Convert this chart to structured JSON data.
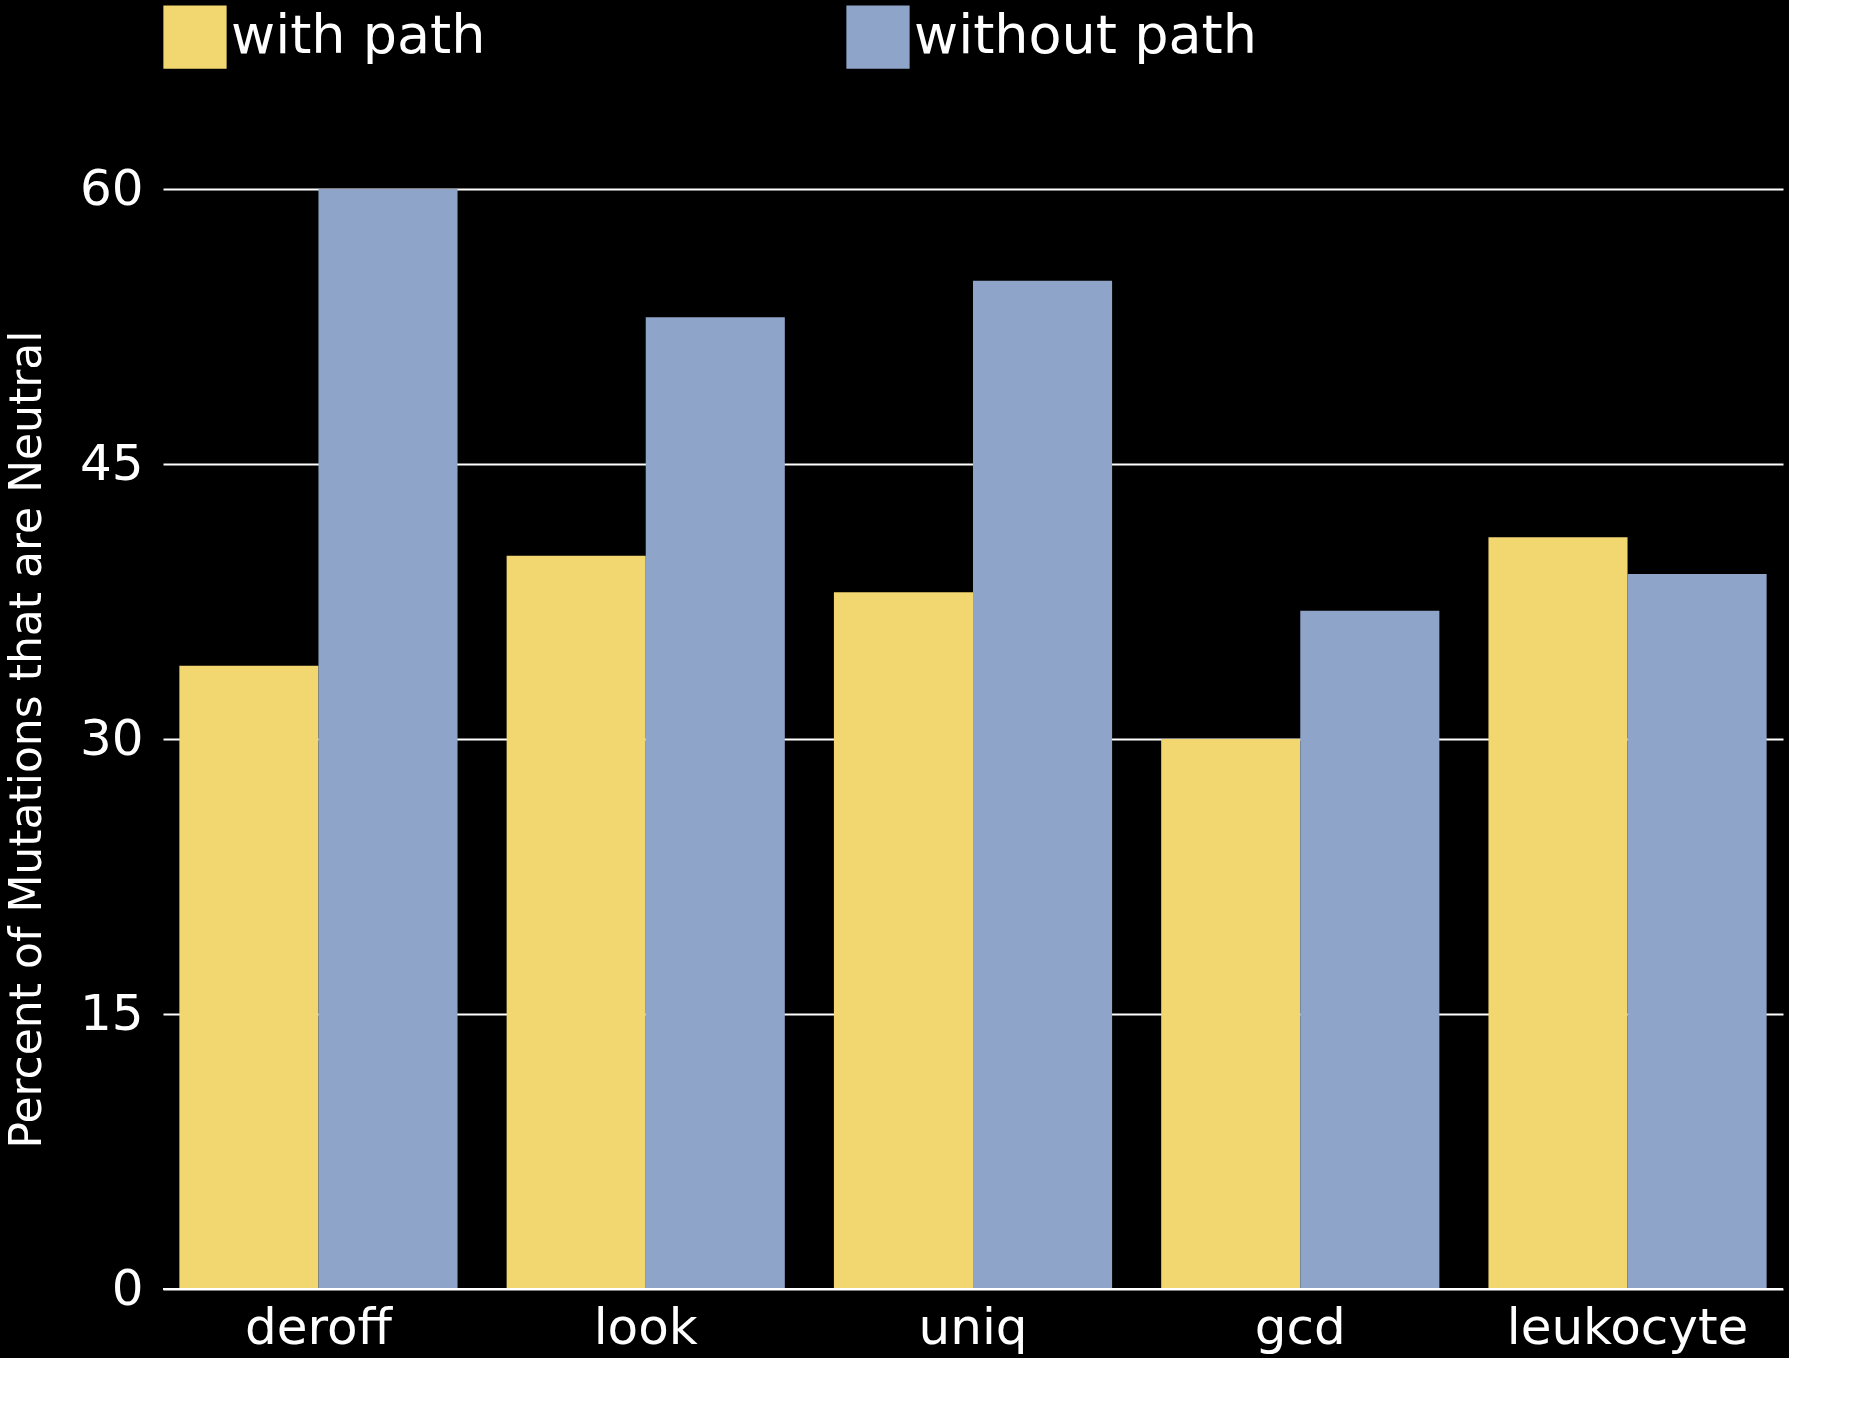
{
  "chart_data": {
    "type": "bar",
    "ylabel": "Percent of Mutations that are Neutral",
    "categories": [
      "deroff",
      "look",
      "uniq",
      "gcd",
      "leukocyte"
    ],
    "series": [
      {
        "name": "with path",
        "color": "#f2d66f",
        "values": [
          34,
          40,
          38,
          30,
          41
        ]
      },
      {
        "name": "without path",
        "color": "#8ea4c8",
        "values": [
          60,
          53,
          55,
          37,
          39
        ]
      }
    ],
    "ylim": [
      0,
      60
    ],
    "yticks": [
      0,
      15,
      30,
      45,
      60
    ],
    "grid": "y",
    "legend": "top"
  }
}
